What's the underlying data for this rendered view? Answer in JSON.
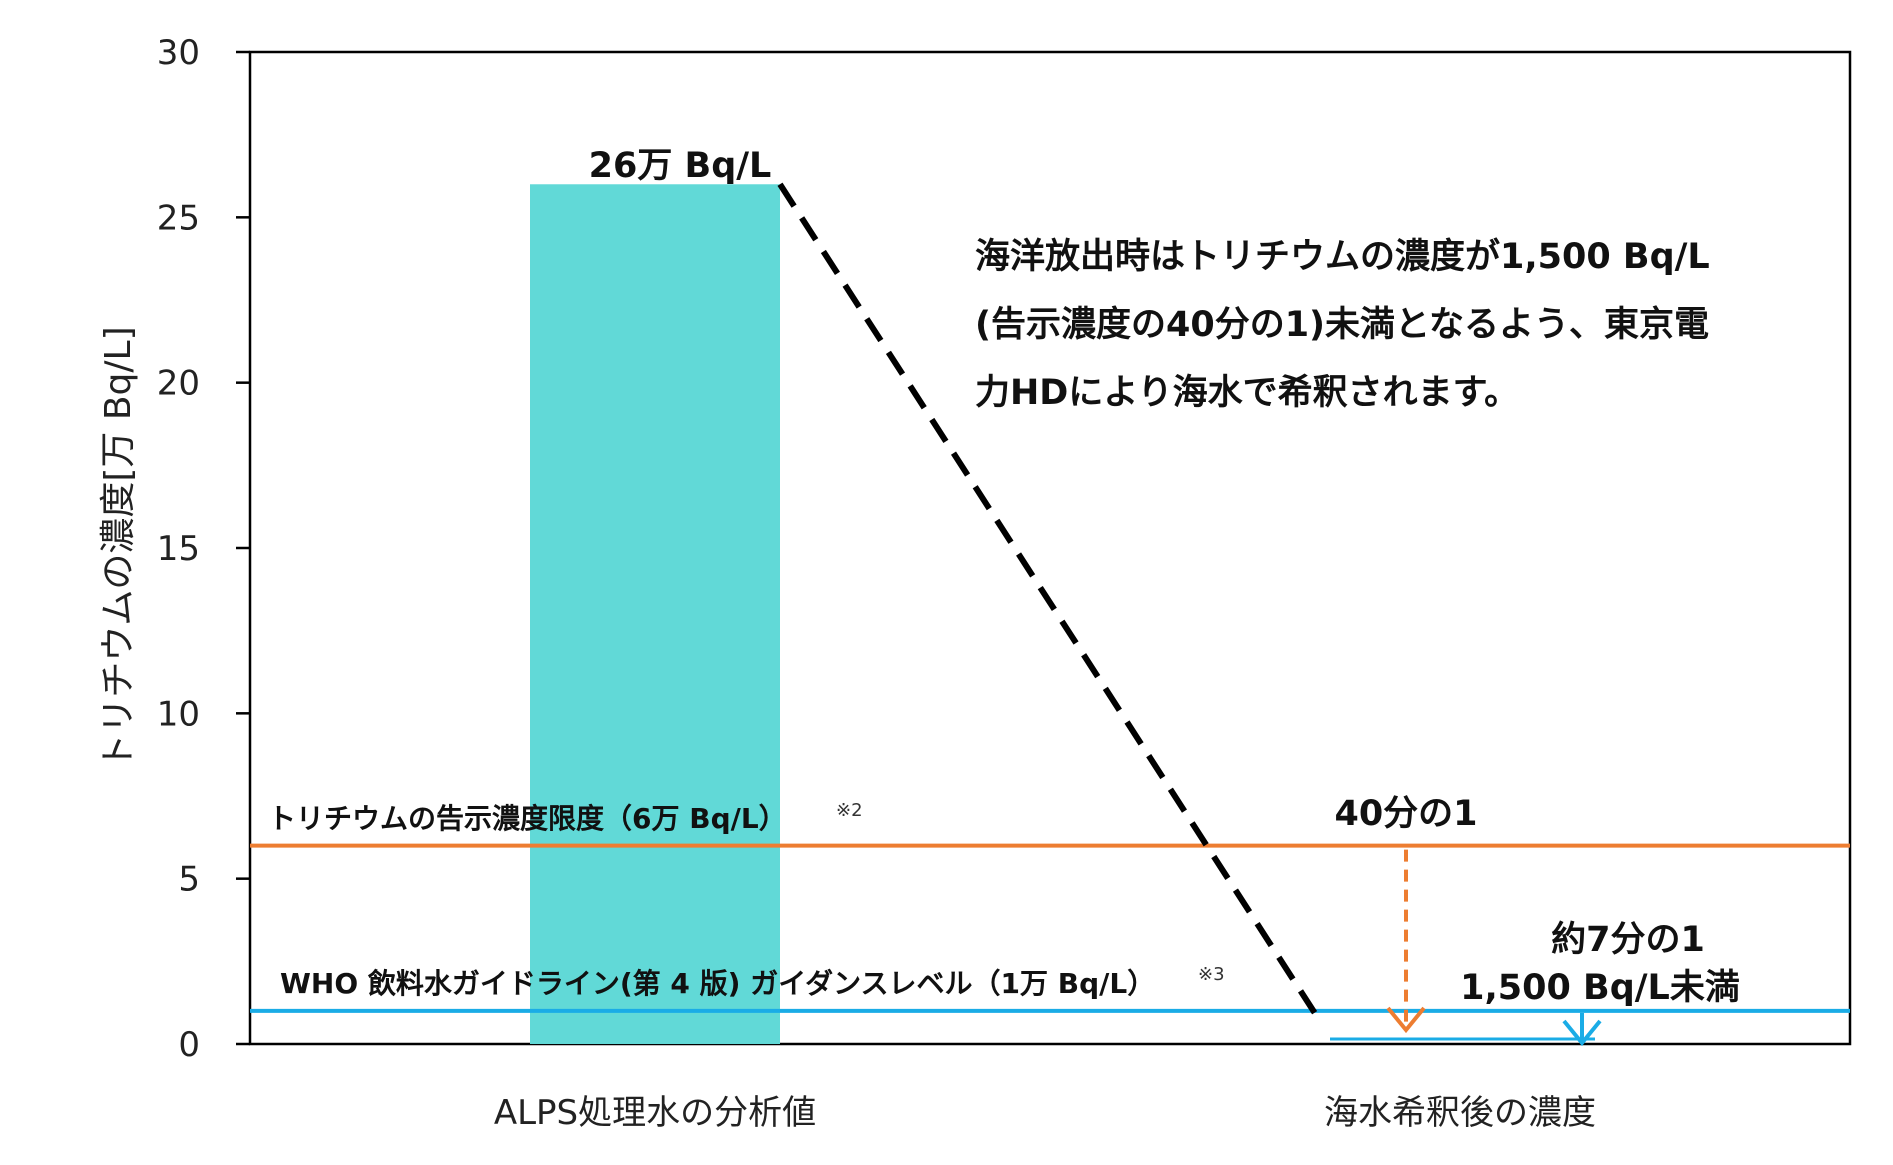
{
  "chart_data": {
    "type": "bar",
    "categories": [
      "ALPS処理水の分析値",
      "海水希釈後の濃度"
    ],
    "values": [
      26,
      0.15
    ],
    "ylabel": "トリチウムの濃度[万 Bq/L]",
    "ylim": [
      0,
      30
    ],
    "yticks": [
      "0",
      "5",
      "10",
      "15",
      "20",
      "25",
      "30"
    ],
    "grid": false,
    "bar_label": "26万 Bq/L",
    "reference_lines": [
      {
        "value": 6,
        "label": "トリチウムの告示濃度限度（6万 Bq/L）",
        "note": "※2",
        "color": "#ED7D31"
      },
      {
        "value": 1,
        "label": "WHO 飲料水ガイドライン(第 4 版) ガイダンスレベル（1万 Bq/L）",
        "note": "※3",
        "color": "#1AACE6"
      }
    ],
    "annotations": {
      "main_text": [
        "海洋放出時はトリチウムの濃度が1,500 Bq/L",
        "(告示濃度の40分の1)未満となるよう、東京電",
        "力HDにより海水で希釈されます。"
      ],
      "ratio_orange": "40分の1",
      "ratio_blue": "約7分の1",
      "after_value": "1,500 Bq/L未満"
    },
    "colors": {
      "bar": "#61D9D7",
      "orange": "#ED7D31",
      "blue": "#1AACE6",
      "axis": "#000000"
    }
  }
}
